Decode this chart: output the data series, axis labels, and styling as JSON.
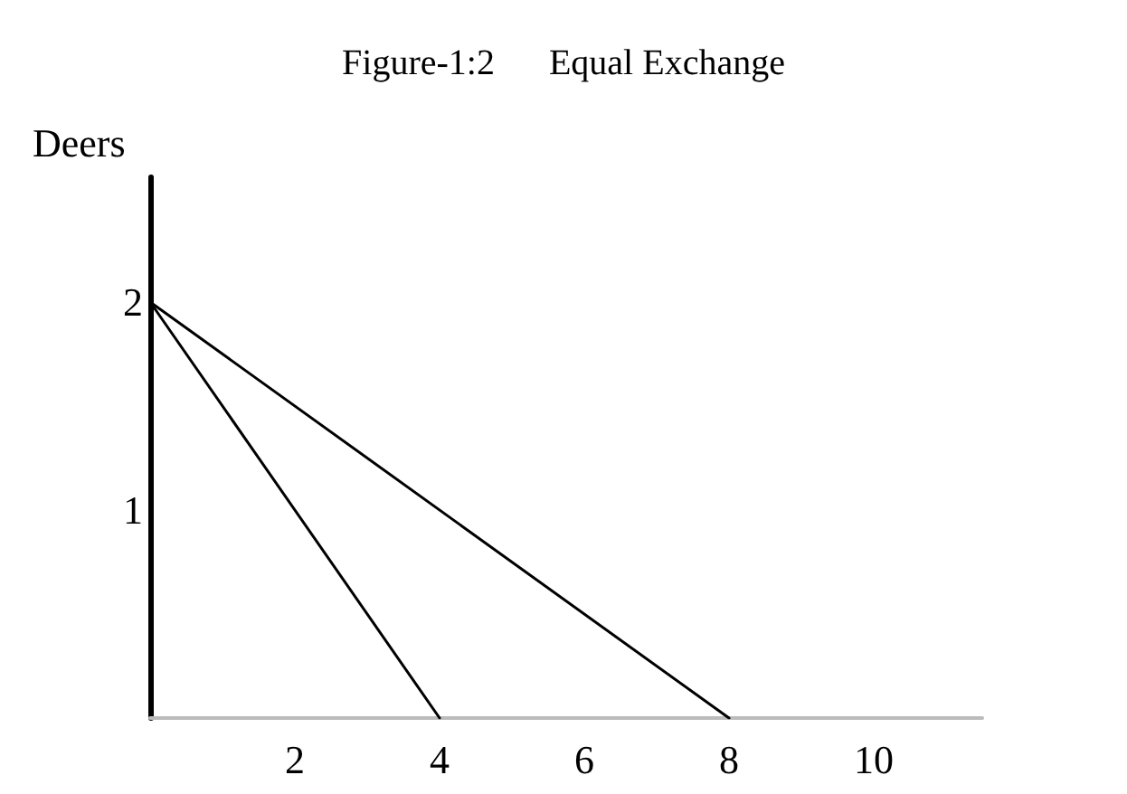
{
  "chart_data": {
    "type": "line",
    "title": "Figure-1:2      Equal Exchange",
    "ylabel": "Deers",
    "series": [
      {
        "color": "#000000",
        "x": [
          0,
          4
        ],
        "values": [
          2,
          0
        ]
      },
      {
        "color": "#000000",
        "x": [
          0,
          8
        ],
        "values": [
          2,
          0
        ]
      }
    ],
    "xlim": [
      0,
      11.5
    ],
    "xticks": [
      2,
      4,
      6,
      8,
      10
    ],
    "ylim": [
      0,
      2.6
    ],
    "yticks": [
      1,
      2
    ],
    "grid": false,
    "marker": "none",
    "line_style": "solid"
  }
}
